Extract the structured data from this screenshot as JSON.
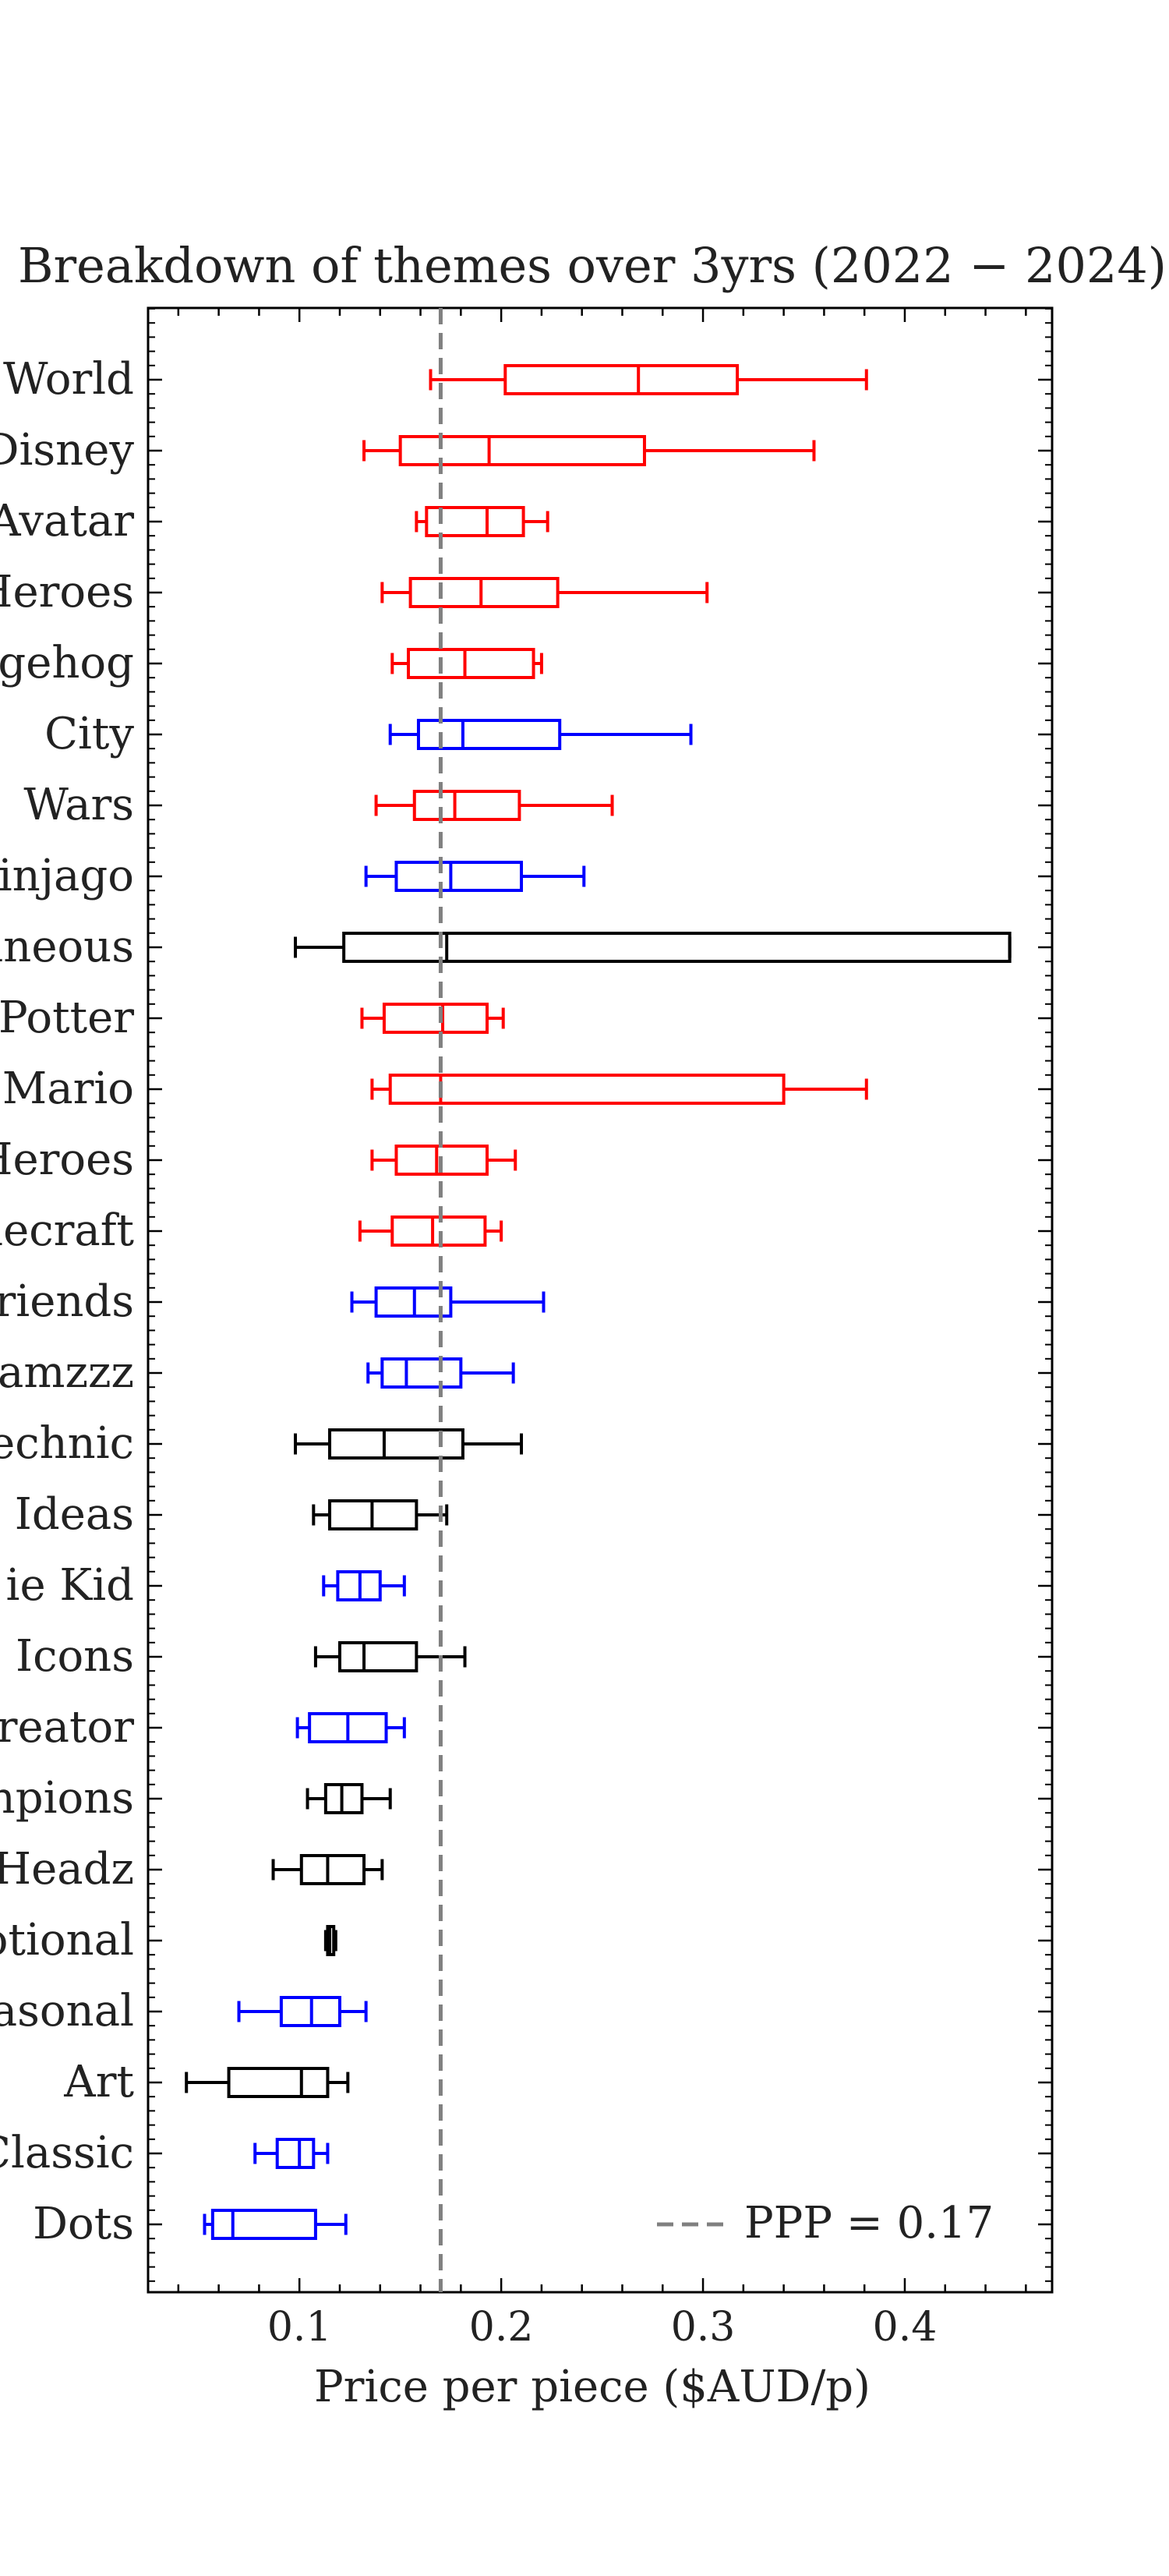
{
  "chart_data": {
    "type": "boxplot",
    "orientation": "horizontal",
    "title": "Breakdown of themes over 3yrs (2022 − 2024)",
    "xlabel": "Price per piece ($AUD/p)",
    "ylabel": "",
    "xlim": [
      0.025,
      0.473
    ],
    "x_ticks": [
      0.1,
      0.2,
      0.3,
      0.4
    ],
    "x_tick_labels": [
      "0.1",
      "0.2",
      "0.3",
      "0.4"
    ],
    "grid": false,
    "legend": {
      "placement": "bottom-right",
      "entries": [
        {
          "label": "PPP = 0.17",
          "style": "dashed",
          "color": "#808080"
        }
      ]
    },
    "reference_line": {
      "label": "PPP = 0.17",
      "value": 0.17,
      "color": "#808080",
      "style": "dashed"
    },
    "colors": {
      "red": "#ff0000",
      "blue": "#0000ff",
      "black": "#000000"
    },
    "categories": [
      "World",
      "Disney",
      "Avatar",
      "Heroes",
      "lgehog",
      "City",
      "Wars",
      "injago",
      "aneous",
      "Potter",
      "Mario",
      "Heroes",
      "necraft",
      "riends",
      "amzzz",
      "echnic",
      "Ideas",
      "ie Kid",
      "Icons",
      "reator",
      "npions",
      "Headz",
      "otional",
      "asonal",
      "Art",
      "Classic",
      "Dots"
    ],
    "boxes": [
      {
        "label": "World",
        "whisker_low": 0.165,
        "q1": 0.202,
        "median": 0.268,
        "q3": 0.317,
        "whisker_high": 0.381,
        "color": "#ff0000"
      },
      {
        "label": "Disney",
        "whisker_low": 0.132,
        "q1": 0.15,
        "median": 0.194,
        "q3": 0.271,
        "whisker_high": 0.355,
        "color": "#ff0000"
      },
      {
        "label": "Avatar",
        "whisker_low": 0.158,
        "q1": 0.163,
        "median": 0.193,
        "q3": 0.211,
        "whisker_high": 0.223,
        "color": "#ff0000"
      },
      {
        "label": "Heroes",
        "whisker_low": 0.141,
        "q1": 0.155,
        "median": 0.19,
        "q3": 0.228,
        "whisker_high": 0.302,
        "color": "#ff0000"
      },
      {
        "label": "lgehog",
        "whisker_low": 0.146,
        "q1": 0.154,
        "median": 0.182,
        "q3": 0.216,
        "whisker_high": 0.22,
        "color": "#ff0000"
      },
      {
        "label": "City",
        "whisker_low": 0.145,
        "q1": 0.159,
        "median": 0.181,
        "q3": 0.229,
        "whisker_high": 0.294,
        "color": "#0000ff"
      },
      {
        "label": "Wars",
        "whisker_low": 0.138,
        "q1": 0.157,
        "median": 0.177,
        "q3": 0.209,
        "whisker_high": 0.255,
        "color": "#ff0000"
      },
      {
        "label": "injago",
        "whisker_low": 0.133,
        "q1": 0.148,
        "median": 0.175,
        "q3": 0.21,
        "whisker_high": 0.241,
        "color": "#0000ff"
      },
      {
        "label": "aneous",
        "whisker_low": 0.098,
        "q1": 0.122,
        "median": 0.173,
        "q3": 0.452,
        "whisker_high": 0.452,
        "color": "#000000"
      },
      {
        "label": "Potter",
        "whisker_low": 0.131,
        "q1": 0.142,
        "median": 0.171,
        "q3": 0.193,
        "whisker_high": 0.201,
        "color": "#ff0000"
      },
      {
        "label": "Mario",
        "whisker_low": 0.136,
        "q1": 0.145,
        "median": 0.17,
        "q3": 0.34,
        "whisker_high": 0.381,
        "color": "#ff0000"
      },
      {
        "label": "Heroes",
        "whisker_low": 0.136,
        "q1": 0.148,
        "median": 0.168,
        "q3": 0.193,
        "whisker_high": 0.207,
        "color": "#ff0000"
      },
      {
        "label": "necraft",
        "whisker_low": 0.13,
        "q1": 0.146,
        "median": 0.166,
        "q3": 0.192,
        "whisker_high": 0.2,
        "color": "#ff0000"
      },
      {
        "label": "riends",
        "whisker_low": 0.126,
        "q1": 0.138,
        "median": 0.157,
        "q3": 0.175,
        "whisker_high": 0.221,
        "color": "#0000ff"
      },
      {
        "label": "amzzz",
        "whisker_low": 0.134,
        "q1": 0.141,
        "median": 0.153,
        "q3": 0.18,
        "whisker_high": 0.206,
        "color": "#0000ff"
      },
      {
        "label": "echnic",
        "whisker_low": 0.098,
        "q1": 0.115,
        "median": 0.142,
        "q3": 0.181,
        "whisker_high": 0.21,
        "color": "#000000"
      },
      {
        "label": "Ideas",
        "whisker_low": 0.107,
        "q1": 0.115,
        "median": 0.136,
        "q3": 0.158,
        "whisker_high": 0.173,
        "color": "#000000"
      },
      {
        "label": "ie Kid",
        "whisker_low": 0.112,
        "q1": 0.119,
        "median": 0.13,
        "q3": 0.14,
        "whisker_high": 0.152,
        "color": "#0000ff"
      },
      {
        "label": "Icons",
        "whisker_low": 0.108,
        "q1": 0.12,
        "median": 0.132,
        "q3": 0.158,
        "whisker_high": 0.182,
        "color": "#000000"
      },
      {
        "label": "reator",
        "whisker_low": 0.099,
        "q1": 0.105,
        "median": 0.124,
        "q3": 0.143,
        "whisker_high": 0.152,
        "color": "#0000ff"
      },
      {
        "label": "npions",
        "whisker_low": 0.104,
        "q1": 0.113,
        "median": 0.121,
        "q3": 0.131,
        "whisker_high": 0.145,
        "color": "#000000"
      },
      {
        "label": "Headz",
        "whisker_low": 0.087,
        "q1": 0.101,
        "median": 0.114,
        "q3": 0.132,
        "whisker_high": 0.141,
        "color": "#000000"
      },
      {
        "label": "otional",
        "whisker_low": 0.113,
        "q1": 0.114,
        "median": 0.115,
        "q3": 0.117,
        "whisker_high": 0.118,
        "color": "#000000"
      },
      {
        "label": "asonal",
        "whisker_low": 0.07,
        "q1": 0.091,
        "median": 0.106,
        "q3": 0.12,
        "whisker_high": 0.133,
        "color": "#0000ff"
      },
      {
        "label": "Art",
        "whisker_low": 0.044,
        "q1": 0.065,
        "median": 0.101,
        "q3": 0.114,
        "whisker_high": 0.124,
        "color": "#000000"
      },
      {
        "label": "Classic",
        "whisker_low": 0.078,
        "q1": 0.089,
        "median": 0.1,
        "q3": 0.107,
        "whisker_high": 0.114,
        "color": "#0000ff"
      },
      {
        "label": "Dots",
        "whisker_low": 0.053,
        "q1": 0.057,
        "median": 0.067,
        "q3": 0.108,
        "whisker_high": 0.123,
        "color": "#0000ff"
      }
    ]
  }
}
